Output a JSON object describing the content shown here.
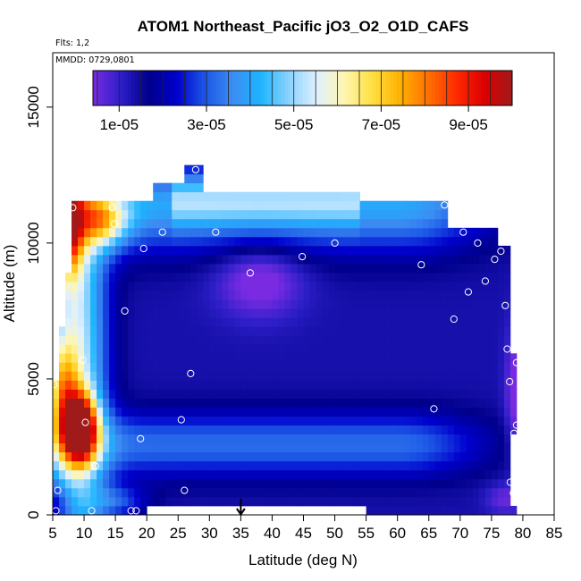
{
  "chart_data": {
    "type": "heatmap",
    "title": "ATOM1 Northeast_Pacific jO3_O2_O1D_CAFS",
    "flights_label": "Flts: 1,2",
    "dates_label": "MMDD: 0729,0801",
    "xlabel": "Latitude (deg N)",
    "ylabel": "Altitude (m)",
    "xlim": [
      5,
      85
    ],
    "ylim": [
      0,
      17000
    ],
    "x_ticks": [
      5,
      10,
      15,
      20,
      25,
      30,
      35,
      40,
      45,
      50,
      55,
      60,
      65,
      70,
      75,
      80,
      85
    ],
    "y_ticks": [
      0,
      5000,
      10000,
      15000
    ],
    "y_tick_labels": [
      "0",
      "5000",
      "10000",
      "15000"
    ],
    "colorbar": {
      "min": 4e-06,
      "max": 0.0001,
      "tick_values": [
        1e-05,
        3e-05,
        5e-05,
        7e-05,
        9e-05
      ],
      "tick_labels": [
        "1e-05",
        "3e-05",
        "5e-05",
        "7e-05",
        "9e-05"
      ],
      "colors": [
        "#7a2be2",
        "#2d1fc8",
        "#00008b",
        "#0000cd",
        "#1c56e6",
        "#3c8cf2",
        "#1eb4ff",
        "#8ad2ff",
        "#dff0ff",
        "#fff6b0",
        "#ffe040",
        "#ffb000",
        "#ff7000",
        "#ff2a00",
        "#dd0000",
        "#a01a1a"
      ]
    },
    "marker_latitude": 35,
    "observations": [
      {
        "lat": 5.2,
        "alt": 4800
      },
      {
        "lat": 5.5,
        "alt": 150
      },
      {
        "lat": 5.8,
        "alt": 900
      },
      {
        "lat": 8.2,
        "alt": 11300
      },
      {
        "lat": 9.8,
        "alt": 5700
      },
      {
        "lat": 10.2,
        "alt": 3400
      },
      {
        "lat": 11.2,
        "alt": 150
      },
      {
        "lat": 11.8,
        "alt": 1800
      },
      {
        "lat": 14.5,
        "alt": 11300
      },
      {
        "lat": 14.8,
        "alt": 10700
      },
      {
        "lat": 16.5,
        "alt": 7500
      },
      {
        "lat": 17.5,
        "alt": 150
      },
      {
        "lat": 18.3,
        "alt": 150
      },
      {
        "lat": 19.0,
        "alt": 2800
      },
      {
        "lat": 19.5,
        "alt": 9800
      },
      {
        "lat": 22.5,
        "alt": 10400
      },
      {
        "lat": 25.5,
        "alt": 3500
      },
      {
        "lat": 26.0,
        "alt": 900
      },
      {
        "lat": 27.0,
        "alt": 5200
      },
      {
        "lat": 27.8,
        "alt": 12700
      },
      {
        "lat": 31.0,
        "alt": 10400
      },
      {
        "lat": 36.5,
        "alt": 8900
      },
      {
        "lat": 44.8,
        "alt": 9500
      },
      {
        "lat": 50.0,
        "alt": 10000
      },
      {
        "lat": 63.8,
        "alt": 9200
      },
      {
        "lat": 65.8,
        "alt": 3900
      },
      {
        "lat": 67.5,
        "alt": 11400
      },
      {
        "lat": 69.0,
        "alt": 7200
      },
      {
        "lat": 70.5,
        "alt": 10400
      },
      {
        "lat": 71.3,
        "alt": 8200
      },
      {
        "lat": 72.8,
        "alt": 10000
      },
      {
        "lat": 74.0,
        "alt": 8600
      },
      {
        "lat": 75.5,
        "alt": 9400
      },
      {
        "lat": 76.5,
        "alt": 9700
      },
      {
        "lat": 77.2,
        "alt": 7700
      },
      {
        "lat": 77.5,
        "alt": 6100
      },
      {
        "lat": 77.9,
        "alt": 4900
      },
      {
        "lat": 78.0,
        "alt": 1200
      },
      {
        "lat": 78.5,
        "alt": 800
      },
      {
        "lat": 78.6,
        "alt": 3000
      },
      {
        "lat": 79.0,
        "alt": 3300
      },
      {
        "lat": 79.0,
        "alt": 5600
      }
    ]
  }
}
